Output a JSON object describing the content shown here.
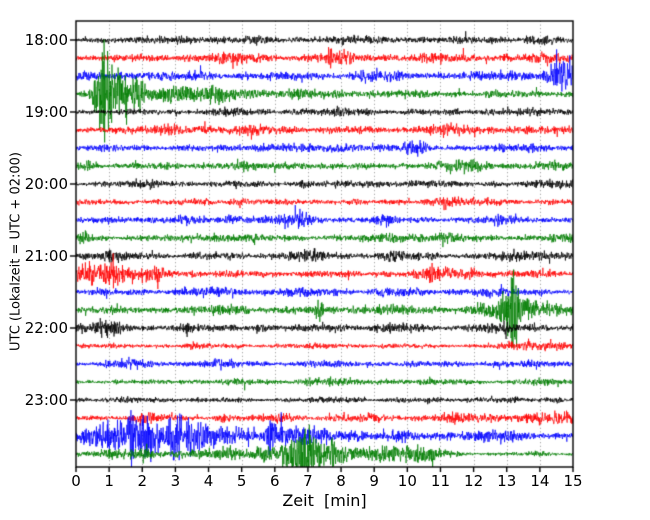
{
  "chart_data": {
    "type": "line",
    "subtype": "seismogram-dayplot",
    "title": "",
    "xlabel": "Zeit  [min]",
    "ylabel": "UTC (Lokalzeit = UTC + 02:00)",
    "xlim": [
      0,
      15
    ],
    "minutes_per_row": 15,
    "x_ticks": [
      "0",
      "1",
      "2",
      "3",
      "4",
      "5",
      "6",
      "7",
      "8",
      "9",
      "10",
      "11",
      "12",
      "13",
      "14",
      "15"
    ],
    "y_ticks": [
      {
        "row": 0,
        "label": "18:00"
      },
      {
        "row": 4,
        "label": "19:00"
      },
      {
        "row": 8,
        "label": "20:00"
      },
      {
        "row": 12,
        "label": "21:00"
      },
      {
        "row": 16,
        "label": "22:00"
      },
      {
        "row": 20,
        "label": "23:00"
      }
    ],
    "grid": {
      "vertical_dotted": true,
      "color": "#888888"
    },
    "palette": {
      "black": "#000000",
      "red": "#ff0000",
      "blue": "#0000ff",
      "green": "#007c00"
    },
    "axis_color": "#000000",
    "traces": [
      {
        "time": "18:00",
        "color": "black",
        "base": 2.8,
        "events": [
          [
            3.5,
            0.5,
            1.5
          ],
          [
            5.5,
            0.3,
            1.2
          ],
          [
            8.8,
            0.8,
            1.2
          ],
          [
            12.2,
            0.5,
            1.2
          ],
          [
            14.0,
            0.5,
            1.0
          ]
        ]
      },
      {
        "time": "18:15",
        "color": "red",
        "base": 3.2,
        "events": [
          [
            4.5,
            0.8,
            2.0
          ],
          [
            7.67,
            0.06,
            6.0
          ],
          [
            8.3,
            0.6,
            2.0
          ],
          [
            11.5,
            0.6,
            1.5
          ],
          [
            14.6,
            0.4,
            3.0
          ]
        ]
      },
      {
        "time": "18:30",
        "color": "blue",
        "base": 3.5,
        "events": [
          [
            2.0,
            0.4,
            1.5
          ],
          [
            9.0,
            0.5,
            1.5
          ],
          [
            13.8,
            0.8,
            2.0
          ],
          [
            14.85,
            0.4,
            13.0
          ]
        ]
      },
      {
        "time": "18:45",
        "color": "green",
        "base": 3.0,
        "events": [
          [
            0.7,
            0.15,
            14.0
          ],
          [
            0.85,
            0.08,
            25.0
          ],
          [
            1.05,
            0.25,
            12.0
          ],
          [
            1.4,
            0.4,
            8.0
          ],
          [
            2.2,
            0.8,
            5.0
          ],
          [
            3.5,
            1.2,
            3.0
          ],
          [
            6.0,
            2.5,
            1.5
          ]
        ]
      },
      {
        "time": "19:00",
        "color": "black",
        "base": 2.6,
        "events": [
          [
            4.6,
            0.4,
            1.5
          ],
          [
            8.0,
            1.0,
            1.0
          ],
          [
            13.0,
            1.0,
            1.0
          ]
        ]
      },
      {
        "time": "19:15",
        "color": "red",
        "base": 3.0,
        "events": [
          [
            1.1,
            0.2,
            2.0
          ],
          [
            3.3,
            0.7,
            2.5
          ],
          [
            6.0,
            0.8,
            1.5
          ],
          [
            11.2,
            0.5,
            3.5
          ],
          [
            13.0,
            0.5,
            1.5
          ]
        ]
      },
      {
        "time": "19:30",
        "color": "blue",
        "base": 2.8,
        "events": [
          [
            5.8,
            0.6,
            2.0
          ],
          [
            8.2,
            0.5,
            2.5
          ],
          [
            10.2,
            0.3,
            3.0
          ],
          [
            13.8,
            0.6,
            1.5
          ]
        ]
      },
      {
        "time": "19:45",
        "color": "green",
        "base": 2.6,
        "events": [
          [
            0.45,
            0.15,
            3.0
          ],
          [
            4.8,
            0.5,
            1.5
          ],
          [
            6.8,
            0.4,
            2.0
          ],
          [
            11.8,
            0.7,
            3.0
          ],
          [
            14.2,
            0.4,
            1.5
          ]
        ]
      },
      {
        "time": "20:00",
        "color": "black",
        "base": 2.6,
        "events": [
          [
            2.2,
            0.5,
            1.2
          ],
          [
            6.9,
            0.15,
            2.5
          ],
          [
            9.5,
            0.8,
            1.2
          ],
          [
            14.7,
            0.3,
            3.0
          ]
        ]
      },
      {
        "time": "20:15",
        "color": "red",
        "base": 2.4,
        "events": [
          [
            3.9,
            0.1,
            3.0
          ],
          [
            4.8,
            0.3,
            1.5
          ],
          [
            11.2,
            0.35,
            4.0
          ],
          [
            12.6,
            0.3,
            2.0
          ]
        ]
      },
      {
        "time": "20:30",
        "color": "blue",
        "base": 2.8,
        "events": [
          [
            2.9,
            0.4,
            2.0
          ],
          [
            4.9,
            0.5,
            2.0
          ],
          [
            6.6,
            0.4,
            3.5
          ],
          [
            9.3,
            0.3,
            2.0
          ],
          [
            13.0,
            0.4,
            1.5
          ]
        ]
      },
      {
        "time": "20:45",
        "color": "green",
        "base": 2.8,
        "events": [
          [
            0.2,
            0.1,
            3.0
          ],
          [
            4.6,
            0.5,
            3.0
          ],
          [
            9.6,
            0.4,
            2.5
          ],
          [
            10.8,
            0.4,
            3.0
          ],
          [
            14.5,
            0.3,
            2.0
          ]
        ]
      },
      {
        "time": "21:00",
        "color": "black",
        "base": 3.0,
        "events": [
          [
            1.0,
            0.5,
            1.5
          ],
          [
            6.8,
            0.4,
            3.0
          ],
          [
            9.5,
            0.7,
            1.5
          ],
          [
            13.8,
            0.7,
            2.0
          ],
          [
            14.8,
            0.2,
            2.0
          ]
        ]
      },
      {
        "time": "21:15",
        "color": "red",
        "base": 3.0,
        "events": [
          [
            0.45,
            0.25,
            11.0
          ],
          [
            0.8,
            0.35,
            6.0
          ],
          [
            1.8,
            0.8,
            2.5
          ],
          [
            2.6,
            0.3,
            2.0
          ],
          [
            10.9,
            0.5,
            3.5
          ],
          [
            12.0,
            0.4,
            1.5
          ]
        ]
      },
      {
        "time": "21:30",
        "color": "blue",
        "base": 2.8,
        "events": [
          [
            4.0,
            0.6,
            1.8
          ],
          [
            6.3,
            0.7,
            1.8
          ],
          [
            9.5,
            0.4,
            2.0
          ],
          [
            12.2,
            0.6,
            1.5
          ]
        ]
      },
      {
        "time": "21:45",
        "color": "green",
        "base": 3.2,
        "events": [
          [
            4.6,
            0.4,
            3.0
          ],
          [
            7.35,
            0.1,
            5.0
          ],
          [
            9.0,
            1.0,
            1.5
          ],
          [
            12.2,
            0.3,
            3.0
          ],
          [
            13.05,
            0.3,
            12.0
          ],
          [
            13.2,
            0.08,
            25.0
          ],
          [
            13.5,
            0.3,
            8.0
          ],
          [
            13.9,
            0.4,
            4.0
          ],
          [
            14.5,
            0.6,
            3.0
          ]
        ]
      },
      {
        "time": "22:00",
        "color": "black",
        "base": 3.0,
        "events": [
          [
            0.9,
            0.5,
            3.5
          ],
          [
            3.4,
            0.15,
            3.0
          ],
          [
            5.5,
            0.1,
            3.0
          ],
          [
            7.7,
            0.3,
            2.0
          ],
          [
            9.8,
            0.3,
            1.5
          ],
          [
            13.0,
            0.6,
            1.5
          ]
        ]
      },
      {
        "time": "22:15",
        "color": "red",
        "base": 2.0,
        "events": [
          [
            3.5,
            0.2,
            1.0
          ],
          [
            8.0,
            1.0,
            0.5
          ],
          [
            13.8,
            0.6,
            2.5
          ],
          [
            14.7,
            0.3,
            2.5
          ]
        ]
      },
      {
        "time": "22:30",
        "color": "blue",
        "base": 2.4,
        "events": [
          [
            1.5,
            0.3,
            2.5
          ],
          [
            4.2,
            0.4,
            2.5
          ],
          [
            7.2,
            0.2,
            1.5
          ],
          [
            9.9,
            0.3,
            1.0
          ],
          [
            13.5,
            0.8,
            0.8
          ]
        ]
      },
      {
        "time": "22:45",
        "color": "green",
        "base": 2.0,
        "events": [
          [
            4.5,
            0.8,
            0.8
          ],
          [
            7.1,
            0.3,
            3.5
          ],
          [
            7.9,
            0.3,
            2.0
          ],
          [
            10.0,
            0.8,
            1.0
          ],
          [
            13.9,
            0.5,
            1.2
          ]
        ]
      },
      {
        "time": "23:00",
        "color": "black",
        "base": 2.0,
        "events": [
          [
            2.0,
            0.5,
            0.8
          ],
          [
            8.0,
            0.4,
            1.5
          ],
          [
            12.0,
            0.8,
            0.8
          ],
          [
            14.6,
            0.3,
            1.5
          ]
        ]
      },
      {
        "time": "23:15",
        "color": "red",
        "base": 2.6,
        "events": [
          [
            1.9,
            0.25,
            2.5
          ],
          [
            2.3,
            0.15,
            3.0
          ],
          [
            4.5,
            0.1,
            3.0
          ],
          [
            6.2,
            0.25,
            3.5
          ],
          [
            9.0,
            0.4,
            1.5
          ],
          [
            11.5,
            0.8,
            1.5
          ],
          [
            13.2,
            0.8,
            2.5
          ],
          [
            14.6,
            0.5,
            3.0
          ]
        ]
      },
      {
        "time": "23:30",
        "color": "blue",
        "base": 3.0,
        "events": [
          [
            0.7,
            0.4,
            6.0
          ],
          [
            1.3,
            0.4,
            9.0
          ],
          [
            1.75,
            0.12,
            30.0
          ],
          [
            2.1,
            0.15,
            26.0
          ],
          [
            2.4,
            0.2,
            14.0
          ],
          [
            3.0,
            0.12,
            24.0
          ],
          [
            3.3,
            0.3,
            9.0
          ],
          [
            4.0,
            0.6,
            7.0
          ],
          [
            4.9,
            0.5,
            5.0
          ],
          [
            5.85,
            0.08,
            18.0
          ],
          [
            6.3,
            0.5,
            5.0
          ],
          [
            7.2,
            0.5,
            4.0
          ],
          [
            8.2,
            0.5,
            3.0
          ],
          [
            9.9,
            0.2,
            2.5
          ],
          [
            11.5,
            1.0,
            1.5
          ],
          [
            13.0,
            0.8,
            1.5
          ]
        ]
      },
      {
        "time": "23:45",
        "color": "green",
        "base": 1.5,
        "events": [
          [
            1.0,
            1.2,
            2.0
          ],
          [
            3.0,
            1.2,
            2.2
          ],
          [
            5.0,
            0.8,
            3.0
          ],
          [
            6.3,
            0.5,
            10.0
          ],
          [
            6.85,
            0.2,
            16.0
          ],
          [
            7.3,
            0.5,
            9.0
          ],
          [
            8.3,
            0.8,
            5.0
          ],
          [
            9.3,
            0.6,
            4.5
          ],
          [
            10.4,
            0.6,
            3.5
          ],
          [
            11.0,
            0.3,
            2.0
          ],
          [
            14.0,
            0.4,
            0.8
          ]
        ]
      }
    ]
  }
}
